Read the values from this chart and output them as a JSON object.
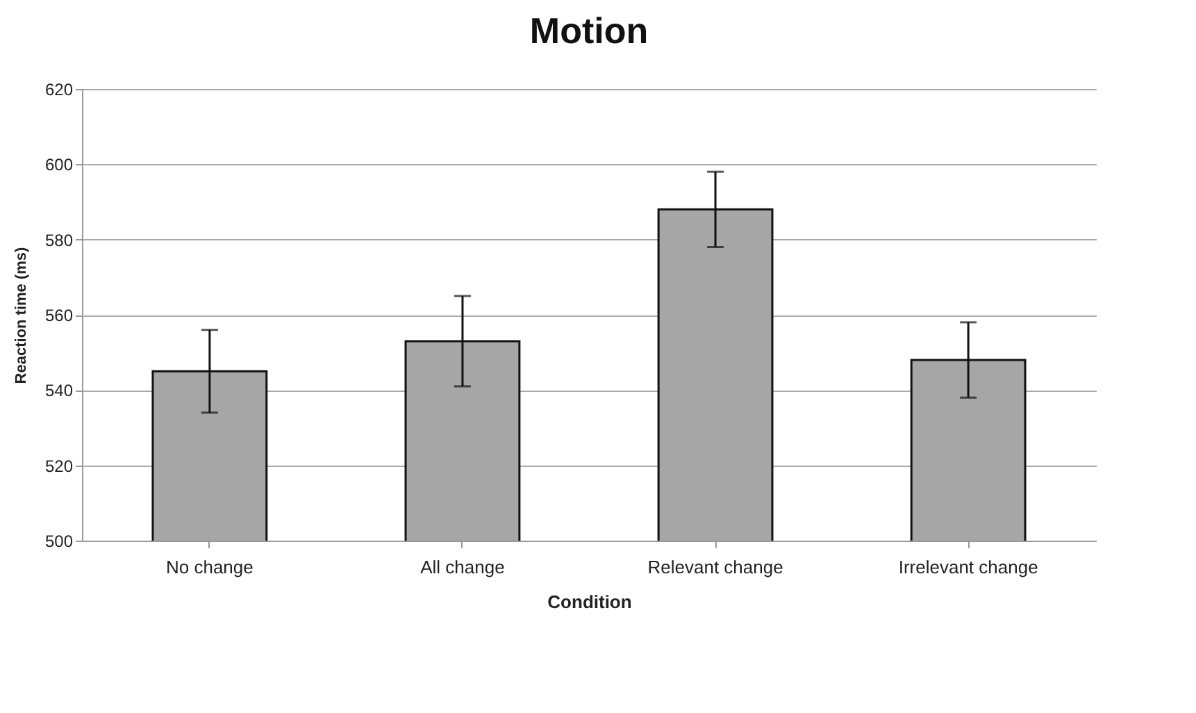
{
  "chart_data": {
    "type": "bar",
    "title": "Motion",
    "xlabel": "Condition",
    "ylabel": "Reaction time (ms)",
    "categories": [
      "No change",
      "All change",
      "Relevant change",
      "Irrelevant change"
    ],
    "values": [
      545,
      553,
      588,
      548
    ],
    "errors": [
      11,
      12,
      10,
      10
    ],
    "color": "#a6a6a6",
    "ylim": [
      500,
      620
    ],
    "yticks": [
      500,
      520,
      540,
      560,
      580,
      600,
      620
    ],
    "grid": "y"
  }
}
